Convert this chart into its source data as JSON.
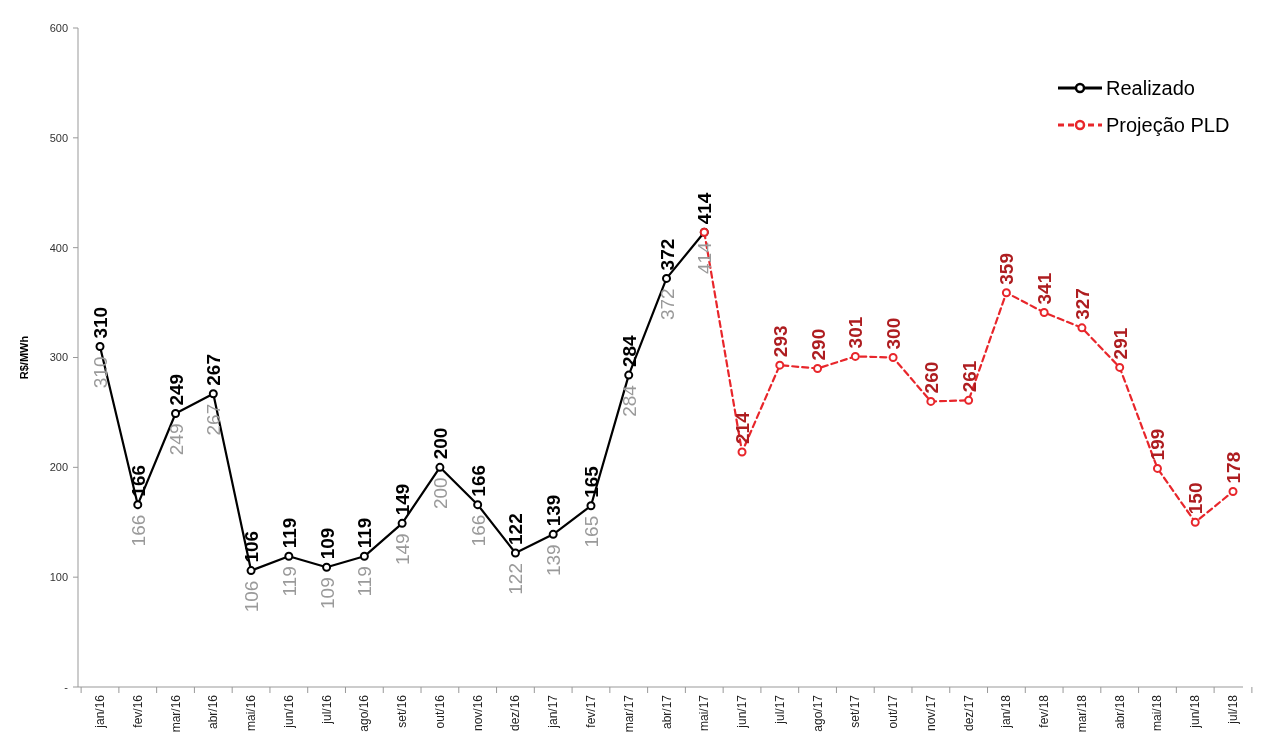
{
  "chart_data": {
    "type": "line",
    "ylabel": "R$/MWh",
    "categories": [
      "jan/16",
      "fev/16",
      "mar/16",
      "abr/16",
      "mai/16",
      "jun/16",
      "jul/16",
      "ago/16",
      "set/16",
      "out/16",
      "nov/16",
      "dez/16",
      "jan/17",
      "fev/17",
      "mar/17",
      "abr/17",
      "mai/17",
      "jun/17",
      "jul/17",
      "ago/17",
      "set/17",
      "out/17",
      "nov/17",
      "dez/17",
      "jan/18",
      "fev/18",
      "mar/18",
      "abr/18",
      "mai/18",
      "jun/18",
      "jul/18"
    ],
    "ylim": [
      0,
      600
    ],
    "yticks": [
      {
        "value": 0,
        "label": "-"
      },
      100,
      200,
      300,
      400,
      500,
      600
    ],
    "grid": false,
    "legend": "top right",
    "marker": "circle",
    "series": [
      {
        "name": "Realizado",
        "color": "#000000",
        "line_style": "solid",
        "values": [
          310,
          166,
          249,
          267,
          106,
          119,
          109,
          119,
          149,
          200,
          166,
          122,
          139,
          165,
          284,
          372,
          414,
          null,
          null,
          null,
          null,
          null,
          null,
          null,
          null,
          null,
          null,
          null,
          null,
          null,
          null
        ],
        "value_labels": [
          "310",
          "166",
          "249",
          "267",
          "106",
          "119",
          "109",
          "119",
          "149",
          "200",
          "166",
          "122",
          "139",
          "165",
          "284",
          "372",
          "414",
          null,
          null,
          null,
          null,
          null,
          null,
          null,
          null,
          null,
          null,
          null,
          null,
          null,
          null
        ]
      },
      {
        "name": "Projeção PLD",
        "color": "#e8262b",
        "line_style": "dashed",
        "values": [
          null,
          null,
          null,
          null,
          null,
          null,
          null,
          null,
          null,
          null,
          null,
          null,
          null,
          null,
          null,
          null,
          414,
          214,
          293,
          290,
          301,
          300,
          260,
          261,
          359,
          341,
          327,
          291,
          199,
          150,
          178
        ],
        "value_labels": [
          null,
          null,
          null,
          null,
          null,
          null,
          null,
          null,
          null,
          null,
          null,
          null,
          null,
          null,
          null,
          null,
          null,
          "214",
          "293",
          "290",
          "301",
          "300",
          "260",
          "261",
          "359",
          "341",
          "327",
          "291",
          "199",
          "150",
          "178"
        ]
      }
    ],
    "annotations": [
      {
        "text": "310",
        "x": "jan/16",
        "y": 310
      },
      {
        "text": "166",
        "x": "fev/16",
        "y": 166
      },
      {
        "text": "249",
        "x": "mar/16",
        "y": 249
      },
      {
        "text": "267",
        "x": "abr/16",
        "y": 267
      },
      {
        "text": "106",
        "x": "mai/16",
        "y": 106
      },
      {
        "text": "119",
        "x": "jun/16",
        "y": 119
      },
      {
        "text": "109",
        "x": "jul/16",
        "y": 109
      },
      {
        "text": "119",
        "x": "ago/16",
        "y": 119
      },
      {
        "text": "149",
        "x": "set/16",
        "y": 149
      },
      {
        "text": "200",
        "x": "out/16",
        "y": 200
      },
      {
        "text": "166",
        "x": "nov/16",
        "y": 166
      },
      {
        "text": "122",
        "x": "dez/16",
        "y": 122
      },
      {
        "text": "139",
        "x": "jan/17",
        "y": 139
      },
      {
        "text": "165",
        "x": "fev/17",
        "y": 165
      },
      {
        "text": "284",
        "x": "mar/17",
        "y": 284
      },
      {
        "text": "372",
        "x": "abr/17",
        "y": 372
      },
      {
        "text": "414",
        "x": "mai/17",
        "y": 414
      }
    ]
  }
}
